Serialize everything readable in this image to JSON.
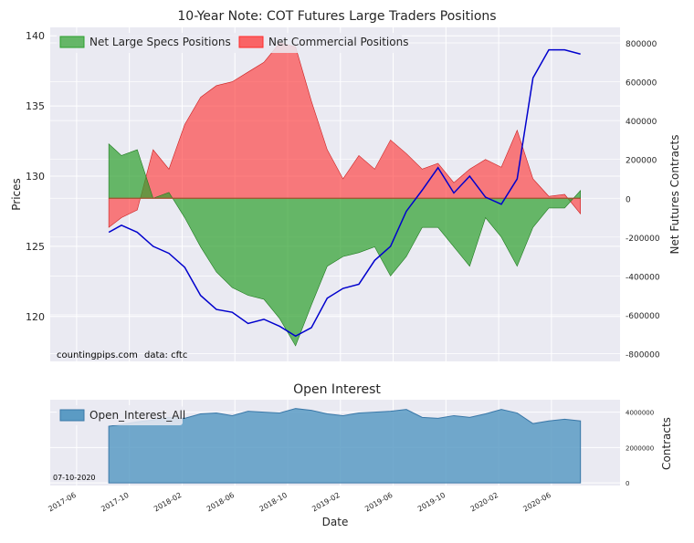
{
  "chart_data": [
    {
      "type": "area",
      "title": "10-Year Note: COT Futures Large Traders Positions",
      "ylabel_left": "Prices",
      "ylabel_right": "Net Futures Contracts",
      "ylim_left": [
        116.8,
        140.6
      ],
      "ylim_right": [
        -840000,
        880000
      ],
      "yticks_left": [
        "120",
        "125",
        "130",
        "135",
        "140"
      ],
      "yticks_right": [
        "-800000",
        "-600000",
        "-400000",
        "-200000",
        "0",
        "200000",
        "400000",
        "600000",
        "800000"
      ],
      "legend": [
        "Net Large Specs Positions",
        "Net Commercial Positions"
      ],
      "colors": {
        "specs": "#2ca02c",
        "commercial": "#ff2b2b",
        "price": "#0000cd"
      },
      "annotations": {
        "source": "countingpips.com",
        "data": "data: cftc"
      },
      "series": [
        {
          "name": "Net Large Specs Positions",
          "x": [
            2017.62,
            2017.7,
            2017.8,
            2017.9,
            2018.0,
            2018.1,
            2018.2,
            2018.3,
            2018.4,
            2018.5,
            2018.6,
            2018.7,
            2018.8,
            2018.9,
            2019.0,
            2019.1,
            2019.2,
            2019.3,
            2019.4,
            2019.5,
            2019.6,
            2019.7,
            2019.8,
            2019.9,
            2020.0,
            2020.1,
            2020.2,
            2020.3,
            2020.4,
            2020.5,
            2020.6
          ],
          "values": [
            280000,
            220000,
            250000,
            0,
            30000,
            -100000,
            -250000,
            -380000,
            -460000,
            -500000,
            -520000,
            -620000,
            -760000,
            -550000,
            -350000,
            -300000,
            -280000,
            -250000,
            -400000,
            -300000,
            -150000,
            -150000,
            -250000,
            -350000,
            -100000,
            -200000,
            -350000,
            -150000,
            -50000,
            -50000,
            40000
          ]
        },
        {
          "name": "Net Commercial Positions",
          "x": [
            2017.62,
            2017.7,
            2017.8,
            2017.9,
            2018.0,
            2018.1,
            2018.2,
            2018.3,
            2018.4,
            2018.5,
            2018.6,
            2018.7,
            2018.8,
            2018.9,
            2019.0,
            2019.1,
            2019.2,
            2019.3,
            2019.4,
            2019.5,
            2019.6,
            2019.7,
            2019.8,
            2019.9,
            2020.0,
            2020.1,
            2020.2,
            2020.3,
            2020.4,
            2020.5,
            2020.6
          ],
          "values": [
            -150000,
            -100000,
            -60000,
            250000,
            150000,
            380000,
            520000,
            580000,
            600000,
            650000,
            700000,
            800000,
            780000,
            500000,
            250000,
            100000,
            220000,
            150000,
            300000,
            230000,
            150000,
            180000,
            80000,
            150000,
            200000,
            160000,
            350000,
            100000,
            10000,
            20000,
            -80000
          ]
        },
        {
          "name": "Prices",
          "x": [
            2017.62,
            2017.7,
            2017.8,
            2017.9,
            2018.0,
            2018.1,
            2018.2,
            2018.3,
            2018.4,
            2018.5,
            2018.6,
            2018.7,
            2018.8,
            2018.9,
            2019.0,
            2019.1,
            2019.2,
            2019.3,
            2019.4,
            2019.5,
            2019.6,
            2019.7,
            2019.8,
            2019.9,
            2020.0,
            2020.1,
            2020.2,
            2020.3,
            2020.4,
            2020.5,
            2020.6
          ],
          "values": [
            126,
            126.5,
            126,
            125,
            124.5,
            123.5,
            121.5,
            120.5,
            120.3,
            119.5,
            119.8,
            119.3,
            118.6,
            119.2,
            121.3,
            122,
            122.3,
            124,
            125,
            127.5,
            129,
            130.6,
            128.8,
            130,
            128.5,
            128,
            129.8,
            137,
            139,
            139,
            138.7
          ]
        }
      ]
    },
    {
      "type": "area",
      "title": "Open Interest",
      "xlabel": "Date",
      "ylabel": "Contracts",
      "ylim": [
        -150000,
        4700000
      ],
      "yticks": [
        "0",
        "2000000",
        "4000000"
      ],
      "legend": [
        "Open_Interest_All"
      ],
      "color": "#5b9bc4",
      "annotation": "07-10-2020",
      "xticks": [
        "2017-06",
        "2017-10",
        "2018-02",
        "2018-06",
        "2018-10",
        "2019-02",
        "2019-06",
        "2019-10",
        "2020-02",
        "2020-06"
      ],
      "x": [
        2017.62,
        2017.7,
        2017.8,
        2017.9,
        2018.0,
        2018.1,
        2018.2,
        2018.3,
        2018.4,
        2018.5,
        2018.6,
        2018.7,
        2018.8,
        2018.9,
        2019.0,
        2019.1,
        2019.2,
        2019.3,
        2019.4,
        2019.5,
        2019.6,
        2019.7,
        2019.8,
        2019.9,
        2020.0,
        2020.1,
        2020.2,
        2020.3,
        2020.4,
        2020.5,
        2020.6
      ],
      "values": [
        3200000,
        3300000,
        3450000,
        3550000,
        3700000,
        3650000,
        3900000,
        3950000,
        3800000,
        4050000,
        4000000,
        3950000,
        4200000,
        4100000,
        3900000,
        3800000,
        3950000,
        4000000,
        4050000,
        4150000,
        3700000,
        3650000,
        3800000,
        3700000,
        3900000,
        4150000,
        3950000,
        3350000,
        3500000,
        3600000,
        3500000
      ]
    }
  ]
}
